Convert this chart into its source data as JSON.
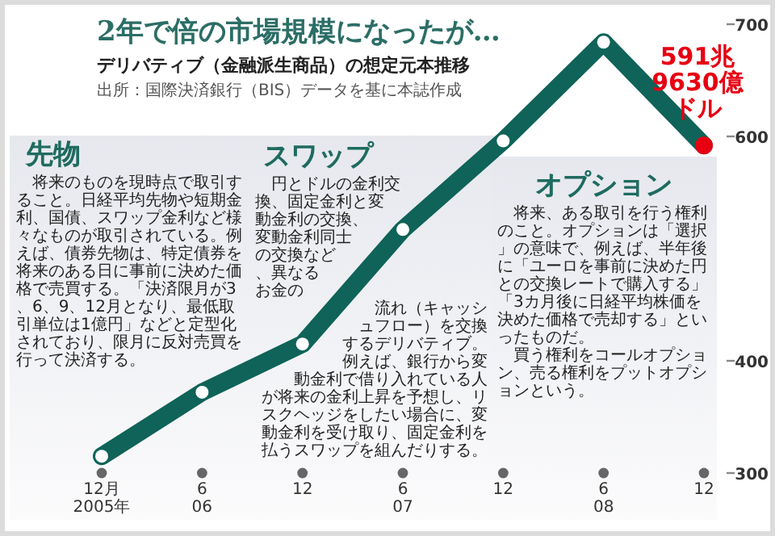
{
  "chart_data": {
    "type": "line",
    "title": "2年で倍の市場規模になったが…",
    "subtitle": "デリバティブ（金融派生商品）の想定元本推移",
    "annotations": [
      "出所：国際決済銀行（BIS）データを基に本誌作成",
      {
        "text": "591兆9630億ドル",
        "x": "2008-12",
        "y": 591.963
      },
      "先物",
      "将来のものを現時点で取引すること。日経平均先物や短期金利、国債、スワップ金利など様々なものが取引されている。例えば、債券先物は、特定債券を将来のある日に事前に決めた価格で売買する。「決済限月が3、6、9、12月となり、最低取引単位は1億円」などと定型化されており、限月に反対売買を行って決済する。",
      "スワップ",
      "円とドルの金利交換、固定金利と変動金利の交換、変動金利同士の交換など、異なるお金の流れ（キャッシュフロー）を交換するデリバティブ。",
      "例えば、銀行から変動金利で借り入れている人が将来の金利上昇を予想し、リスクヘッジをしたい場合に、変動金利を受け取り、固定金利を払うスワップを組んだりする。",
      "オプション",
      "将来、ある取引を行う権利のこと。オプションは「選択」の意味で、例えば、半年後に「ユーロを事前に決めた円との交換レートで購入する」「3カ月後に日経平均株価を決めた価格で売却する」といったものだ。",
      "買う権利をコールオプション、売る権利をプットオプションという。"
    ],
    "x": [
      "2005-12",
      "2006-06",
      "2006-12",
      "2007-06",
      "2007-12",
      "2008-06",
      "2008-12"
    ],
    "series": [
      {
        "color": "#0f6358",
        "colors": [
          "#ffffff",
          "#ffffff",
          "#ffffff",
          "#ffffff",
          "#ffffff",
          "#ffffff",
          "#e60012"
        ],
        "values": [
          315,
          372,
          415,
          517,
          596,
          684,
          591.963
        ]
      }
    ],
    "xlim": [
      "2005-12",
      "2008-12"
    ],
    "ylim": [
      300,
      700
    ],
    "yticks": [
      300,
      400,
      600,
      700
    ],
    "xticks": [
      {
        "value": "2005-12",
        "label": "12月\n2005年"
      },
      {
        "value": "2006-06",
        "label": "6\n06"
      },
      {
        "value": "2006-12",
        "label": "12"
      },
      {
        "value": "2007-06",
        "label": "6\n07"
      },
      {
        "value": "2007-12",
        "label": "12"
      },
      {
        "value": "2008-06",
        "label": "6\n08"
      },
      {
        "value": "2008-12",
        "label": "12"
      }
    ],
    "marker": "circle",
    "line_style": "solid"
  }
}
